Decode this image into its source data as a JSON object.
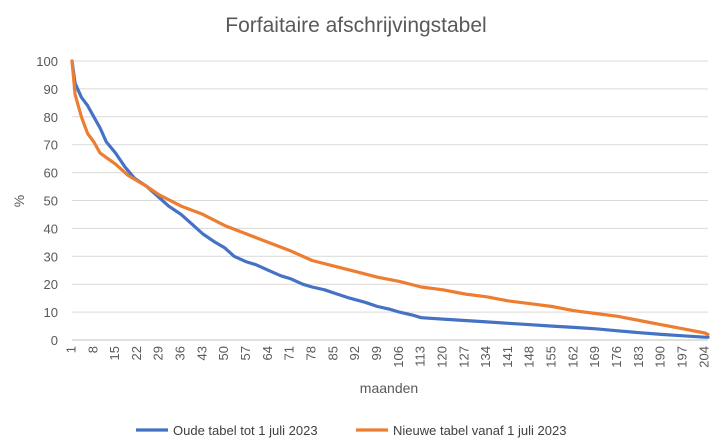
{
  "chart_data": {
    "type": "line",
    "title": "Forfaitaire afschrijvingstabel",
    "xlabel": "maanden",
    "ylabel": "%",
    "x_tick_labels": [
      "1",
      "8",
      "15",
      "22",
      "29",
      "36",
      "43",
      "50",
      "57",
      "64",
      "71",
      "78",
      "85",
      "92",
      "99",
      "106",
      "113",
      "120",
      "127",
      "134",
      "141",
      "148",
      "155",
      "162",
      "169",
      "176",
      "183",
      "190",
      "197",
      "204"
    ],
    "xlim": [
      1,
      205
    ],
    "ylim": [
      0,
      100
    ],
    "y_ticks": [
      0,
      10,
      20,
      30,
      40,
      50,
      60,
      70,
      80,
      90,
      100
    ],
    "grid": "horizontal",
    "legend": "bottom",
    "series": [
      {
        "name": "Oude tabel tot 1 juli 2023",
        "color": "#4472C4",
        "points": [
          [
            1,
            100
          ],
          [
            2,
            92
          ],
          [
            4,
            87
          ],
          [
            6,
            84
          ],
          [
            8,
            80
          ],
          [
            10,
            76
          ],
          [
            12,
            71
          ],
          [
            15,
            67
          ],
          [
            18,
            62
          ],
          [
            21,
            58
          ],
          [
            25,
            55
          ],
          [
            29,
            51
          ],
          [
            32,
            48
          ],
          [
            36,
            45
          ],
          [
            40,
            41
          ],
          [
            43,
            38
          ],
          [
            47,
            35
          ],
          [
            50,
            33
          ],
          [
            53,
            30
          ],
          [
            57,
            28
          ],
          [
            60,
            27
          ],
          [
            64,
            25
          ],
          [
            68,
            23
          ],
          [
            71,
            22
          ],
          [
            75,
            20
          ],
          [
            78,
            19
          ],
          [
            82,
            18
          ],
          [
            86,
            16.5
          ],
          [
            90,
            15
          ],
          [
            95,
            13.5
          ],
          [
            99,
            12
          ],
          [
            103,
            11
          ],
          [
            106,
            10
          ],
          [
            110,
            9
          ],
          [
            113,
            8
          ],
          [
            120,
            7.5
          ],
          [
            127,
            7
          ],
          [
            134,
            6.5
          ],
          [
            141,
            6
          ],
          [
            148,
            5.5
          ],
          [
            155,
            5
          ],
          [
            162,
            4.5
          ],
          [
            169,
            4
          ],
          [
            176,
            3.3
          ],
          [
            183,
            2.6
          ],
          [
            190,
            2
          ],
          [
            197,
            1.5
          ],
          [
            204,
            1
          ],
          [
            205,
            1
          ]
        ]
      },
      {
        "name": "Nieuwe tabel vanaf 1 juli 2023",
        "color": "#ED7D31",
        "points": [
          [
            1,
            100
          ],
          [
            2,
            88
          ],
          [
            4,
            80
          ],
          [
            6,
            74
          ],
          [
            8,
            71
          ],
          [
            10,
            67
          ],
          [
            15,
            63
          ],
          [
            19,
            59
          ],
          [
            22,
            57
          ],
          [
            25,
            55
          ],
          [
            29,
            52
          ],
          [
            36,
            48
          ],
          [
            43,
            45
          ],
          [
            50,
            41
          ],
          [
            57,
            38
          ],
          [
            64,
            35
          ],
          [
            71,
            32
          ],
          [
            78,
            28.5
          ],
          [
            85,
            26.5
          ],
          [
            92,
            24.5
          ],
          [
            99,
            22.5
          ],
          [
            106,
            21
          ],
          [
            113,
            19
          ],
          [
            120,
            18
          ],
          [
            127,
            16.5
          ],
          [
            134,
            15.5
          ],
          [
            141,
            14
          ],
          [
            148,
            13
          ],
          [
            155,
            12
          ],
          [
            162,
            10.5
          ],
          [
            169,
            9.5
          ],
          [
            176,
            8.5
          ],
          [
            183,
            7
          ],
          [
            190,
            5.5
          ],
          [
            197,
            4
          ],
          [
            204,
            2.5
          ],
          [
            205,
            2
          ]
        ]
      }
    ]
  }
}
